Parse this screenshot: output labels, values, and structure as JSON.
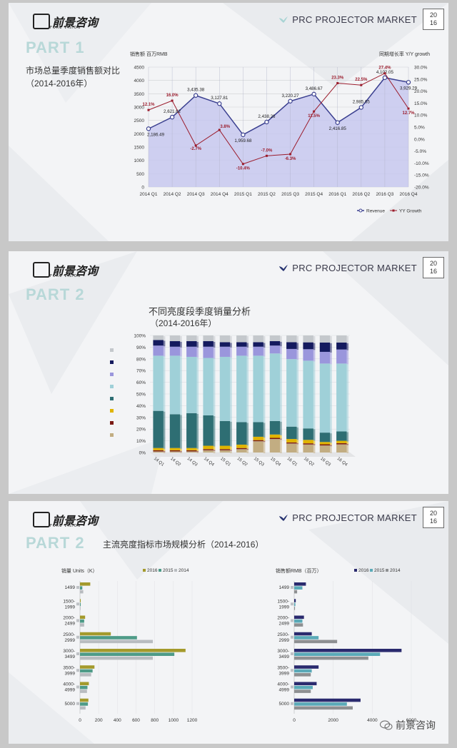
{
  "brand": {
    "logo_text": "前景咨询",
    "logo_sub": "FORE VISION",
    "market_title": "PRC PROJECTOR MARKET",
    "year_top": "20",
    "year_bottom": "16",
    "wechat_label": "前景咨询"
  },
  "slide1": {
    "part": "PART 1",
    "title_line1": "市场总量季度销售额对比",
    "title_line2": "（2014-2016年）"
  },
  "slide2": {
    "part": "PART 2",
    "title_line1": "不同亮度段季度销量分析",
    "title_line2": "（2014-2016年）"
  },
  "slide3": {
    "part": "PART 2",
    "title": "主流亮度指标市场规模分析（2014-2016）"
  },
  "chart_data": [
    {
      "type": "area",
      "title": "",
      "ylabel": "销售额 百万RMB",
      "y2label": "同期增长率 Y/Y growth",
      "categories": [
        "2014 Q1",
        "2014 Q2",
        "2014 Q3",
        "2014 Q4",
        "2015 Q1",
        "2015 Q2",
        "2015 Q3",
        "2015 Q4",
        "2016 Q1",
        "2016 Q2",
        "2016 Q3",
        "2016 Q4"
      ],
      "ylim": [
        0,
        4500
      ],
      "yticks": [
        0,
        500,
        1000,
        1500,
        2000,
        2500,
        3000,
        3500,
        4000,
        4500
      ],
      "y2lim": [
        -20,
        30
      ],
      "y2ticks": [
        "30.0%",
        "25.0%",
        "20.0%",
        "15.0%",
        "10.0%",
        "5.0%",
        "0.0%",
        "-5.0%",
        "-10.0%",
        "-15.0%",
        "-20.0%"
      ],
      "series": [
        {
          "name": "Revenue",
          "values": [
            2186.49,
            2621.62,
            3435.38,
            3127.81,
            1959.68,
            2438.26,
            3220.27,
            3486.67,
            2416.85,
            2985.65,
            4102.05,
            3929.29
          ],
          "labels": [
            "2,186.49",
            "2,621.62",
            "3,435.38",
            "3,127.81",
            "1,959.68",
            "2,438.26",
            "3,220.27",
            "3,486.67",
            "2,416.85",
            "2,985.65",
            "4,102.05",
            "3,929.29"
          ],
          "color": "#3a3f8f",
          "fill": "#c7c8ee"
        },
        {
          "name": "YY Growth",
          "values": [
            12.1,
            16.0,
            -2.7,
            3.8,
            -10.4,
            -7.0,
            -6.3,
            11.5,
            23.3,
            22.5,
            27.4,
            12.7
          ],
          "labels": [
            "12.1%",
            "16.0%",
            "-2.7%",
            "3.8%",
            "-10.4%",
            "-7.0%",
            "-6.3%",
            "11.5%",
            "23.3%",
            "22.5%",
            "27.4%",
            "12.7%"
          ],
          "color": "#9b1c2c"
        }
      ],
      "legend": "bottom-right",
      "grid": true
    },
    {
      "type": "bar",
      "stacked": "percent",
      "categories": [
        "14 Q1",
        "14 Q2",
        "14 Q3",
        "14 Q4",
        "15 Q1",
        "15 Q2",
        "15 Q3",
        "15 Q4",
        "16 Q1",
        "16 Q2",
        "16 Q3",
        "16 Q4"
      ],
      "yticks": [
        "0%",
        "10%",
        "20%",
        "30%",
        "40%",
        "50%",
        "60%",
        "70%",
        "80%",
        "90%",
        "100%"
      ],
      "series": [
        {
          "color": "#c2ad82",
          "values": [
            1,
            1,
            1,
            2,
            2,
            3,
            10,
            12,
            8,
            7,
            6,
            7
          ]
        },
        {
          "color": "#7a1a14",
          "values": [
            1,
            1,
            1,
            1,
            1,
            1,
            1,
            1,
            1,
            1,
            1,
            1
          ]
        },
        {
          "color": "#e0b400",
          "values": [
            2,
            2,
            2,
            3,
            3,
            3,
            3,
            3,
            3,
            3,
            2,
            2
          ]
        },
        {
          "color": "#2e6e73",
          "values": [
            33,
            30,
            31,
            27,
            22,
            20,
            13,
            12,
            11,
            10,
            8,
            8
          ]
        },
        {
          "color": "#9fd0d8",
          "values": [
            49,
            52,
            50,
            51,
            57,
            59,
            59,
            60,
            60,
            59,
            59,
            58
          ]
        },
        {
          "color": "#9a96dc",
          "values": [
            9,
            8,
            9,
            10,
            9,
            8,
            8,
            7,
            9,
            10,
            10,
            12
          ]
        },
        {
          "color": "#141a5e",
          "values": [
            5,
            5,
            5,
            5,
            4,
            4,
            4,
            4,
            6,
            6,
            8,
            6
          ]
        },
        {
          "color": "#c4c8cc",
          "values": [
            4,
            5,
            5,
            5,
            6,
            6,
            6,
            5,
            6,
            6,
            6,
            6
          ]
        }
      ],
      "legend": "left",
      "grid": true
    },
    {
      "type": "bar",
      "orientation": "horizontal",
      "ylabel": "销量 Units（K）",
      "categories": [
        [
          "1499"
        ],
        [
          "1500-",
          "1999"
        ],
        [
          "2000-",
          "2499"
        ],
        [
          "2500-",
          "2999"
        ],
        [
          "3000-",
          "3499"
        ],
        [
          "3500-",
          "3999"
        ],
        [
          "4000-",
          "4999"
        ],
        [
          "5000"
        ]
      ],
      "xlim": [
        0,
        1200
      ],
      "xticks": [
        0,
        200,
        400,
        600,
        800,
        1000,
        1200
      ],
      "series": [
        {
          "name": "2016",
          "color": "#a49a2c",
          "values": [
            110,
            8,
            55,
            330,
            1130,
            155,
            95,
            90
          ]
        },
        {
          "name": "2015",
          "color": "#4e9b88",
          "values": [
            25,
            8,
            45,
            610,
            1010,
            135,
            80,
            85
          ]
        },
        {
          "name": "2014",
          "color": "#b8bcc0",
          "values": [
            35,
            6,
            45,
            780,
            780,
            120,
            75,
            60
          ]
        }
      ],
      "legend": "top"
    },
    {
      "type": "bar",
      "orientation": "horizontal",
      "ylabel": "销售额RMB（百万）",
      "categories": [
        [
          "1499"
        ],
        [
          "1500-",
          "1999"
        ],
        [
          "2000-",
          "2499"
        ],
        [
          "2500-",
          "2999"
        ],
        [
          "3000-",
          "3499"
        ],
        [
          "3500-",
          "3999"
        ],
        [
          "4000-",
          "4999"
        ],
        [
          "5000"
        ]
      ],
      "xlim": [
        0,
        6000
      ],
      "xticks": [
        0,
        2000,
        4000,
        6000
      ],
      "series": [
        {
          "name": "2016",
          "color": "#2a2a6e",
          "values": [
            600,
            80,
            500,
            900,
            5500,
            1250,
            1150,
            3400
          ]
        },
        {
          "name": "2015",
          "color": "#5aaab8",
          "values": [
            420,
            60,
            420,
            1250,
            4400,
            900,
            950,
            2700
          ]
        },
        {
          "name": "2014",
          "color": "#8e9092",
          "values": [
            150,
            40,
            450,
            2200,
            3800,
            850,
            850,
            3000
          ]
        }
      ],
      "legend": "top"
    }
  ]
}
